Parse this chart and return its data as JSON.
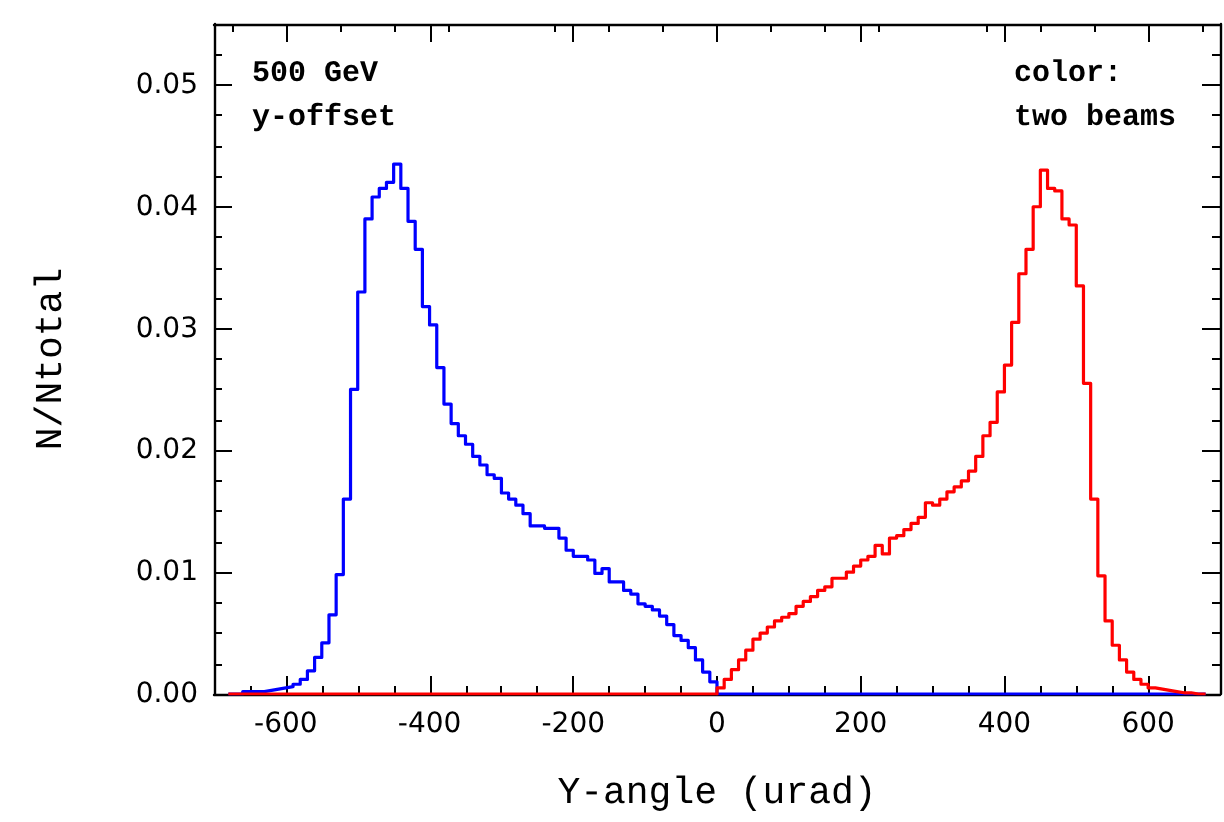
{
  "chart_data": {
    "type": "histogram",
    "xlabel": "Y-angle (urad)",
    "ylabel": "N/Ntotal",
    "annotations": [
      "500 GeV\ny-offset",
      "color:\ntwo beams"
    ],
    "bins": [
      -680,
      -670,
      -660,
      -650,
      -640,
      -630,
      -620,
      -610,
      -600,
      -590,
      -580,
      -570,
      -560,
      -550,
      -540,
      -530,
      -520,
      -510,
      -500,
      -490,
      -480,
      -470,
      -460,
      -450,
      -440,
      -430,
      -420,
      -410,
      -400,
      -390,
      -380,
      -370,
      -360,
      -350,
      -340,
      -330,
      -320,
      -310,
      -300,
      -290,
      -280,
      -270,
      -260,
      -250,
      -240,
      -230,
      -220,
      -210,
      -200,
      -190,
      -180,
      -170,
      -160,
      -150,
      -140,
      -130,
      -120,
      -110,
      -100,
      -90,
      -80,
      -70,
      -60,
      -50,
      -40,
      -30,
      -20,
      -10,
      0,
      10,
      20,
      30,
      40,
      50,
      60,
      70,
      80,
      90,
      100,
      110,
      120,
      130,
      140,
      150,
      160,
      170,
      180,
      190,
      200,
      210,
      220,
      230,
      240,
      250,
      260,
      270,
      280,
      290,
      300,
      310,
      320,
      330,
      340,
      350,
      360,
      370,
      380,
      390,
      400,
      410,
      420,
      430,
      440,
      450,
      460,
      470,
      480,
      490,
      500,
      510,
      520,
      530,
      540,
      550,
      560,
      570,
      580,
      590,
      600,
      610,
      620,
      630,
      640,
      650,
      660,
      670,
      680
    ],
    "series": [
      {
        "color": "#0000ff",
        "values": [
          0,
          0,
          0.0002,
          0.0002,
          0.0002,
          0.0003,
          0.0004,
          0.0005,
          0.0006,
          0.0008,
          0.0012,
          0.0019,
          0.003,
          0.0042,
          0.0065,
          0.0098,
          0.016,
          0.025,
          0.033,
          0.039,
          0.0408,
          0.0415,
          0.042,
          0.0435,
          0.0415,
          0.0388,
          0.0365,
          0.0318,
          0.0303,
          0.0268,
          0.0238,
          0.0222,
          0.0212,
          0.0205,
          0.0195,
          0.0188,
          0.018,
          0.0177,
          0.0165,
          0.016,
          0.0155,
          0.0148,
          0.0138,
          0.0138,
          0.0136,
          0.0136,
          0.0128,
          0.0118,
          0.0113,
          0.0113,
          0.011,
          0.0099,
          0.0103,
          0.0092,
          0.0092,
          0.0085,
          0.0082,
          0.0074,
          0.0072,
          0.0069,
          0.0064,
          0.0057,
          0.0048,
          0.0044,
          0.0038,
          0.0028,
          0.0018,
          0.001,
          0,
          0,
          0,
          0,
          0,
          0,
          0,
          0,
          0,
          0,
          0,
          0,
          0,
          0,
          0,
          0,
          0,
          0,
          0,
          0,
          0,
          0,
          0,
          0,
          0,
          0,
          0,
          0,
          0,
          0,
          0,
          0,
          0,
          0,
          0,
          0,
          0,
          0,
          0,
          0,
          0,
          0,
          0,
          0,
          0,
          0,
          0,
          0,
          0,
          0,
          0,
          0,
          0,
          0,
          0,
          0,
          0,
          0,
          0,
          0,
          0,
          0,
          0,
          0,
          0,
          0,
          0,
          0
        ]
      },
      {
        "color": "#ff0000",
        "values": [
          0,
          0,
          0,
          0,
          0,
          0,
          0,
          0,
          0,
          0,
          0,
          0,
          0,
          0,
          0,
          0,
          0,
          0,
          0,
          0,
          0,
          0,
          0,
          0,
          0,
          0,
          0,
          0,
          0,
          0,
          0,
          0,
          0,
          0,
          0,
          0,
          0,
          0,
          0,
          0,
          0,
          0,
          0,
          0,
          0,
          0,
          0,
          0,
          0,
          0,
          0,
          0,
          0,
          0,
          0,
          0,
          0,
          0,
          0,
          0,
          0,
          0,
          0,
          0,
          0,
          0,
          0,
          0,
          0.0005,
          0.0012,
          0.002,
          0.0028,
          0.0036,
          0.0045,
          0.005,
          0.0055,
          0.006,
          0.0063,
          0.0066,
          0.0072,
          0.0076,
          0.008,
          0.0085,
          0.0088,
          0.0095,
          0.0095,
          0.01,
          0.0105,
          0.011,
          0.0113,
          0.0122,
          0.0115,
          0.0128,
          0.013,
          0.0135,
          0.014,
          0.0145,
          0.0157,
          0.0155,
          0.016,
          0.0166,
          0.017,
          0.0175,
          0.0183,
          0.0195,
          0.0212,
          0.0223,
          0.0248,
          0.027,
          0.0305,
          0.0345,
          0.0365,
          0.04,
          0.043,
          0.0415,
          0.0413,
          0.039,
          0.0385,
          0.0335,
          0.0255,
          0.016,
          0.0097,
          0.006,
          0.004,
          0.0028,
          0.0018,
          0.0012,
          0.0008,
          0.0005,
          0.0004,
          0.0003,
          0.0002,
          0.0001,
          0.0001,
          0,
          0
        ]
      }
    ],
    "xlim": [
      -700,
      700
    ],
    "xticks": [
      -600,
      -400,
      -200,
      0,
      200,
      400,
      600
    ],
    "ylim": [
      0,
      0.055
    ],
    "yticks": [
      {
        "value": 0,
        "label": "0.00"
      },
      {
        "value": 0.01,
        "label": "0.01"
      },
      {
        "value": 0.02,
        "label": "0.02"
      },
      {
        "value": 0.03,
        "label": "0.03"
      },
      {
        "value": 0.04,
        "label": "0.04"
      },
      {
        "value": 0.05,
        "label": "0.05"
      }
    ],
    "grid": false
  }
}
